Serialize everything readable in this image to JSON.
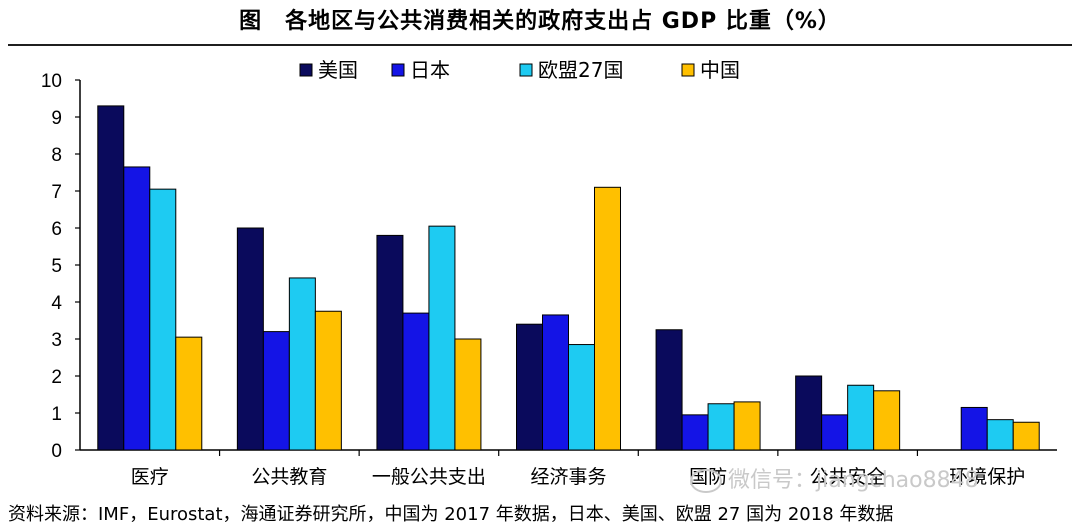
{
  "title": "图　各地区与公共消费相关的政府支出占 GDP 比重（%）",
  "source": "资料来源：IMF，Eurostat，海通证券研究所，中国为 2017 年数据，日本、美国、欧盟 27 国为 2018 年数据",
  "watermark": "微信号：jiangchao8848",
  "chart_data": {
    "type": "bar",
    "title": "图　各地区与公共消费相关的政府支出占 GDP 比重（%）",
    "xlabel": "",
    "ylabel": "",
    "ylim": [
      0,
      10
    ],
    "yticks": [
      0,
      1,
      2,
      3,
      4,
      5,
      6,
      7,
      8,
      9,
      10
    ],
    "grid": false,
    "legend_position": "top",
    "categories": [
      "医疗",
      "公共教育",
      "一般公共支出",
      "经济事务",
      "国防",
      "公共安全",
      "环境保护"
    ],
    "series": [
      {
        "name": "美国",
        "color": "#0a0a5c",
        "values": [
          9.3,
          6.0,
          5.8,
          3.4,
          3.25,
          2.0,
          null
        ]
      },
      {
        "name": "日本",
        "color": "#1414e6",
        "values": [
          7.65,
          3.2,
          3.7,
          3.65,
          0.95,
          0.95,
          1.15
        ]
      },
      {
        "name": "欧盟27国",
        "color": "#1ecbf2",
        "values": [
          7.05,
          4.65,
          6.05,
          2.85,
          1.25,
          1.75,
          0.82
        ]
      },
      {
        "name": "中国",
        "color": "#ffc000",
        "values": [
          3.05,
          3.75,
          3.0,
          7.1,
          1.3,
          1.6,
          0.75
        ]
      }
    ]
  }
}
